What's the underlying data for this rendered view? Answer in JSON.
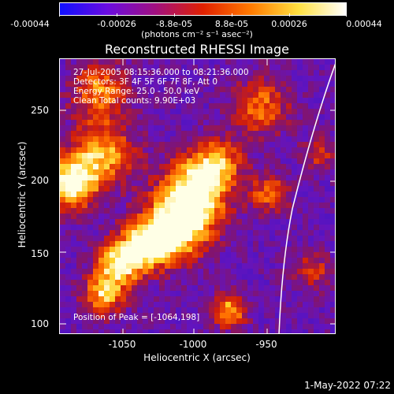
{
  "colorbar": {
    "ticks": [
      "-0.00044",
      "-0.00026",
      "-8.8e-05",
      "8.8e-05",
      "0.00026",
      "0.00044"
    ],
    "units": "(photons cm⁻² s⁻¹ asec⁻²)",
    "colors": [
      "#1010ff",
      "#6a0ce0",
      "#a01080",
      "#e02000",
      "#ff7a00",
      "#ffe040",
      "#ffffff"
    ]
  },
  "title": "Reconstructed RHESSI Image",
  "info": {
    "time": "27-Jul-2005 08:15:36.000 to 08:21:36.000",
    "detectors": "Detectors: 3F 4F 5F 6F 7F 8F, Att 0",
    "energy": "Energy Range: 25.0 - 50.0 keV",
    "clean": "Clean     Total counts: 9.90E+03",
    "peak": "Position of Peak = [-1064,198]"
  },
  "axes": {
    "xlabel": "Heliocentric X (arcsec)",
    "ylabel": "Heliocentric Y (arcsec)",
    "xticks": [
      "-1050",
      "-1000",
      "-950"
    ],
    "yticks": [
      "250",
      "200",
      "150",
      "100"
    ]
  },
  "timestamp": "1-May-2022 07:22"
}
